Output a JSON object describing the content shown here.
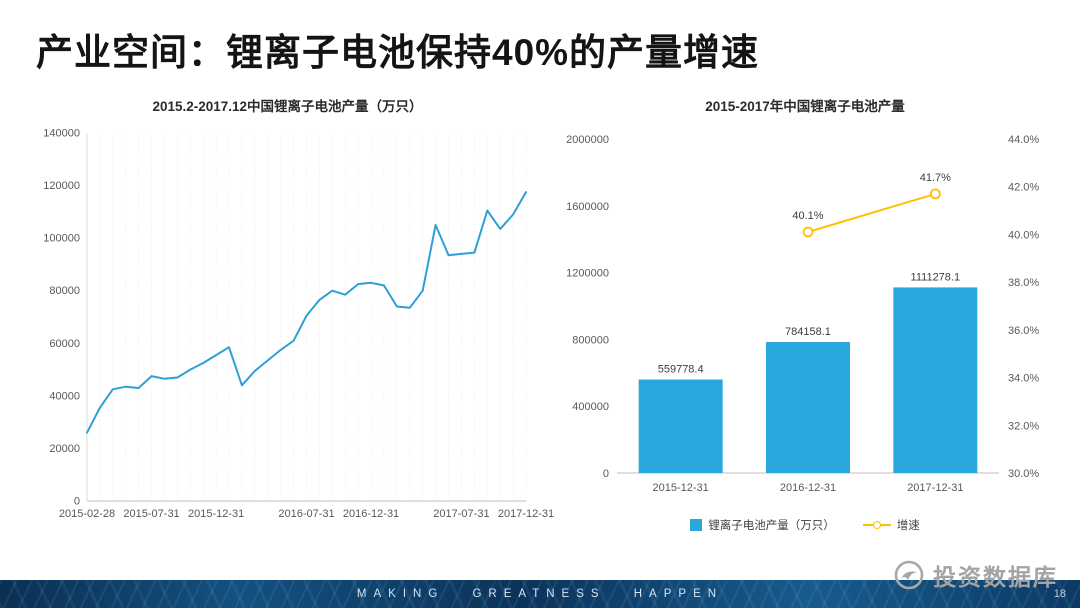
{
  "title": "产业空间：锂离子电池保持40%的产量增速",
  "chart_data": [
    {
      "type": "line",
      "title": "2015.2-2017.12中国锂离子电池产量（万只）",
      "x": [
        "2015-02-28",
        "2015-03-31",
        "2015-04-30",
        "2015-05-31",
        "2015-06-30",
        "2015-07-31",
        "2015-08-31",
        "2015-09-30",
        "2015-10-31",
        "2015-11-30",
        "2015-12-31",
        "2016-01-31",
        "2016-02-29",
        "2016-03-31",
        "2016-04-30",
        "2016-05-31",
        "2016-06-30",
        "2016-07-31",
        "2016-08-31",
        "2016-09-30",
        "2016-10-31",
        "2016-11-30",
        "2016-12-31",
        "2017-01-31",
        "2017-02-28",
        "2017-03-31",
        "2017-04-30",
        "2017-05-31",
        "2017-06-30",
        "2017-07-31",
        "2017-08-31",
        "2017-09-30",
        "2017-10-31",
        "2017-11-30",
        "2017-12-31"
      ],
      "values": [
        26000,
        35500,
        42500,
        43500,
        43000,
        47500,
        46500,
        47000,
        50000,
        52500,
        55500,
        58500,
        44000,
        49500,
        53500,
        57500,
        61000,
        70500,
        76500,
        80000,
        78500,
        82500,
        83000,
        82000,
        74000,
        73500,
        80000,
        105000,
        93500,
        94000,
        94500,
        110500,
        103500,
        109000,
        117500
      ],
      "ylim": [
        0,
        140000
      ],
      "ytick_step": 20000,
      "x_tick_labels": [
        "2015-02-28",
        "2015-07-31",
        "2015-12-31",
        "2016-07-31",
        "2016-12-31",
        "2017-07-31",
        "2017-12-31"
      ],
      "line_color": "#2E9FD6",
      "grid": "vertical-dotted",
      "legend_position": "none"
    },
    {
      "type": "bar+line",
      "title": "2015-2017年中国锂离子电池产量",
      "categories": [
        "2015-12-31",
        "2016-12-31",
        "2017-12-31"
      ],
      "series": [
        {
          "name": "锂离子电池产量（万只）",
          "kind": "bar",
          "axis": "left",
          "color": "#29A7DC",
          "values": [
            559778.4,
            784158.1,
            1111278.1
          ]
        },
        {
          "name": "增速",
          "kind": "line",
          "axis": "right",
          "color": "#FFC000",
          "values": [
            null,
            40.1,
            41.7
          ],
          "point_labels": [
            "",
            "40.1%",
            "41.7%"
          ]
        }
      ],
      "left_axis": {
        "min": 0,
        "max": 2000000,
        "step": 400000
      },
      "right_axis": {
        "min": 30,
        "max": 44,
        "step": 2,
        "suffix": "%"
      },
      "grid": "none",
      "legend_position": "bottom"
    }
  ],
  "watermark": {
    "text": "投资数据库"
  },
  "footer": {
    "slogan": "MAKING GREATNESS HAPPEN",
    "page_number": "18"
  }
}
